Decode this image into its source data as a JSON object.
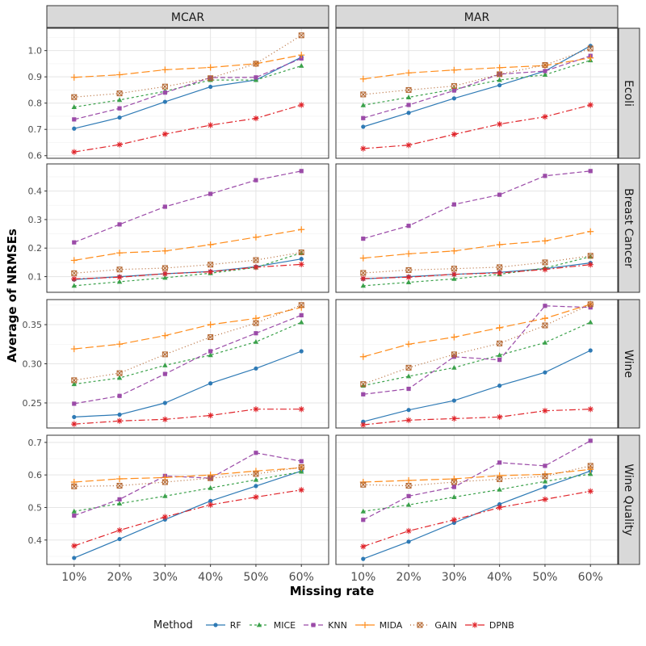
{
  "chart_data": {
    "type": "line",
    "ylabel": "Average of NRMSEs",
    "xlabel": "Missing rate",
    "categories": [
      "10%",
      "20%",
      "30%",
      "40%",
      "50%",
      "60%"
    ],
    "columns": [
      "MCAR",
      "MAR"
    ],
    "legend_title": "Method",
    "methods": [
      {
        "name": "RF",
        "color": "#2e7ab5",
        "dash": "",
        "marker": "circle"
      },
      {
        "name": "MICE",
        "color": "#3aa14a",
        "dash": "3,3",
        "marker": "triangle"
      },
      {
        "name": "KNN",
        "color": "#9b4ba8",
        "dash": "6,3",
        "marker": "square"
      },
      {
        "name": "MIDA",
        "color": "#ff8c1a",
        "dash": "10,4",
        "marker": "plus"
      },
      {
        "name": "GAIN",
        "color": "#b3652e",
        "dash": "1,3",
        "marker": "boxx"
      },
      {
        "name": "DPNB",
        "color": "#e0242a",
        "dash": "8,3,2,3",
        "marker": "asterisk"
      }
    ],
    "panels": [
      {
        "row": "Ecoli",
        "ylim": [
          0.59,
          1.085
        ],
        "yticks": [
          0.6,
          0.7,
          0.8,
          0.9,
          1.0
        ],
        "yticklabels": [
          "0.6",
          "0.7",
          "0.8",
          "0.9",
          "1.0"
        ],
        "MCAR": {
          "RF": [
            0.703,
            0.745,
            0.805,
            0.862,
            0.888,
            0.975
          ],
          "MICE": [
            0.785,
            0.812,
            0.845,
            0.888,
            0.888,
            0.942
          ],
          "KNN": [
            0.738,
            0.78,
            0.84,
            0.897,
            0.898,
            0.97
          ],
          "MIDA": [
            0.898,
            0.908,
            0.927,
            0.936,
            0.95,
            0.983
          ],
          "GAIN": [
            0.823,
            0.837,
            0.863,
            0.895,
            0.95,
            1.058
          ],
          "DPNB": [
            0.614,
            0.642,
            0.682,
            0.716,
            0.742,
            0.793
          ]
        },
        "MAR": {
          "RF": [
            0.71,
            0.763,
            0.818,
            0.868,
            0.922,
            1.018
          ],
          "MICE": [
            0.792,
            0.822,
            0.853,
            0.888,
            0.908,
            0.963
          ],
          "KNN": [
            0.743,
            0.793,
            0.848,
            0.91,
            0.922,
            0.98
          ],
          "MIDA": [
            0.892,
            0.915,
            0.926,
            0.935,
            0.943,
            0.972
          ],
          "GAIN": [
            0.833,
            0.85,
            0.865,
            0.91,
            0.945,
            1.008
          ],
          "DPNB": [
            0.627,
            0.64,
            0.681,
            0.72,
            0.748,
            0.793
          ]
        }
      },
      {
        "row": "Breast Cancer",
        "ylim": [
          0.045,
          0.495
        ],
        "yticks": [
          0.1,
          0.2,
          0.3,
          0.4
        ],
        "yticklabels": [
          "0.1",
          "0.2",
          "0.3",
          "0.4"
        ],
        "MCAR": {
          "RF": [
            0.09,
            0.1,
            0.11,
            0.118,
            0.135,
            0.162
          ],
          "MICE": [
            0.068,
            0.082,
            0.096,
            0.112,
            0.132,
            0.183
          ],
          "KNN": [
            0.22,
            0.283,
            0.345,
            0.39,
            0.438,
            0.47
          ],
          "MIDA": [
            0.157,
            0.183,
            0.19,
            0.212,
            0.238,
            0.265
          ],
          "GAIN": [
            0.112,
            0.125,
            0.13,
            0.142,
            0.158,
            0.185
          ],
          "DPNB": [
            0.092,
            0.098,
            0.11,
            0.117,
            0.133,
            0.143
          ]
        },
        "MAR": {
          "RF": [
            0.092,
            0.1,
            0.108,
            0.115,
            0.128,
            0.148
          ],
          "MICE": [
            0.068,
            0.08,
            0.092,
            0.108,
            0.13,
            0.17
          ],
          "KNN": [
            0.233,
            0.278,
            0.353,
            0.387,
            0.453,
            0.47
          ],
          "MIDA": [
            0.165,
            0.18,
            0.19,
            0.212,
            0.225,
            0.258
          ],
          "GAIN": [
            0.113,
            0.123,
            0.128,
            0.133,
            0.15,
            0.173
          ],
          "DPNB": [
            0.093,
            0.098,
            0.108,
            0.113,
            0.125,
            0.142
          ]
        }
      },
      {
        "row": "Wine",
        "ylim": [
          0.218,
          0.382
        ],
        "yticks": [
          0.25,
          0.3,
          0.35
        ],
        "yticklabels": [
          "0.25",
          "0.30",
          "0.35"
        ],
        "MCAR": {
          "RF": [
            0.232,
            0.235,
            0.25,
            0.275,
            0.294,
            0.316
          ],
          "MICE": [
            0.274,
            0.282,
            0.298,
            0.311,
            0.328,
            0.353
          ],
          "KNN": [
            0.249,
            0.259,
            0.287,
            0.316,
            0.339,
            0.362
          ],
          "MIDA": [
            0.319,
            0.325,
            0.336,
            0.35,
            0.358,
            0.372
          ],
          "GAIN": [
            0.279,
            0.288,
            0.312,
            0.334,
            0.352,
            0.375
          ],
          "DPNB": [
            0.223,
            0.227,
            0.229,
            0.234,
            0.242,
            0.242
          ]
        },
        "MAR": {
          "RF": [
            0.226,
            0.241,
            0.253,
            0.272,
            0.289,
            0.317
          ],
          "MICE": [
            0.272,
            0.284,
            0.295,
            0.311,
            0.327,
            0.353
          ],
          "KNN": [
            0.261,
            0.268,
            0.309,
            0.305,
            0.374,
            0.372
          ],
          "MIDA": [
            0.309,
            0.325,
            0.334,
            0.346,
            0.358,
            0.376
          ],
          "GAIN": [
            0.274,
            0.295,
            0.312,
            0.326,
            0.349,
            0.376
          ],
          "DPNB": [
            0.222,
            0.228,
            0.23,
            0.232,
            0.24,
            0.242
          ]
        }
      },
      {
        "row": "Wine Quality",
        "ylim": [
          0.325,
          0.722
        ],
        "yticks": [
          0.4,
          0.5,
          0.6,
          0.7
        ],
        "yticklabels": [
          "0.4",
          "0.5",
          "0.6",
          "0.7"
        ],
        "MCAR": {
          "RF": [
            0.345,
            0.403,
            0.463,
            0.52,
            0.566,
            0.612
          ],
          "MICE": [
            0.488,
            0.512,
            0.535,
            0.56,
            0.585,
            0.61
          ],
          "KNN": [
            0.475,
            0.525,
            0.597,
            0.59,
            0.668,
            0.642
          ],
          "MIDA": [
            0.578,
            0.588,
            0.592,
            0.6,
            0.612,
            0.622
          ],
          "GAIN": [
            0.565,
            0.567,
            0.578,
            0.59,
            0.603,
            0.624
          ],
          "DPNB": [
            0.382,
            0.43,
            0.471,
            0.508,
            0.532,
            0.554
          ]
        },
        "MAR": {
          "RF": [
            0.342,
            0.395,
            0.453,
            0.51,
            0.563,
            0.612
          ],
          "MICE": [
            0.488,
            0.508,
            0.532,
            0.555,
            0.58,
            0.603
          ],
          "KNN": [
            0.462,
            0.535,
            0.563,
            0.638,
            0.628,
            0.705
          ],
          "MIDA": [
            0.578,
            0.583,
            0.588,
            0.598,
            0.602,
            0.617
          ],
          "GAIN": [
            0.57,
            0.567,
            0.578,
            0.587,
            0.596,
            0.628
          ],
          "DPNB": [
            0.38,
            0.428,
            0.462,
            0.5,
            0.525,
            0.55
          ]
        }
      }
    ]
  }
}
